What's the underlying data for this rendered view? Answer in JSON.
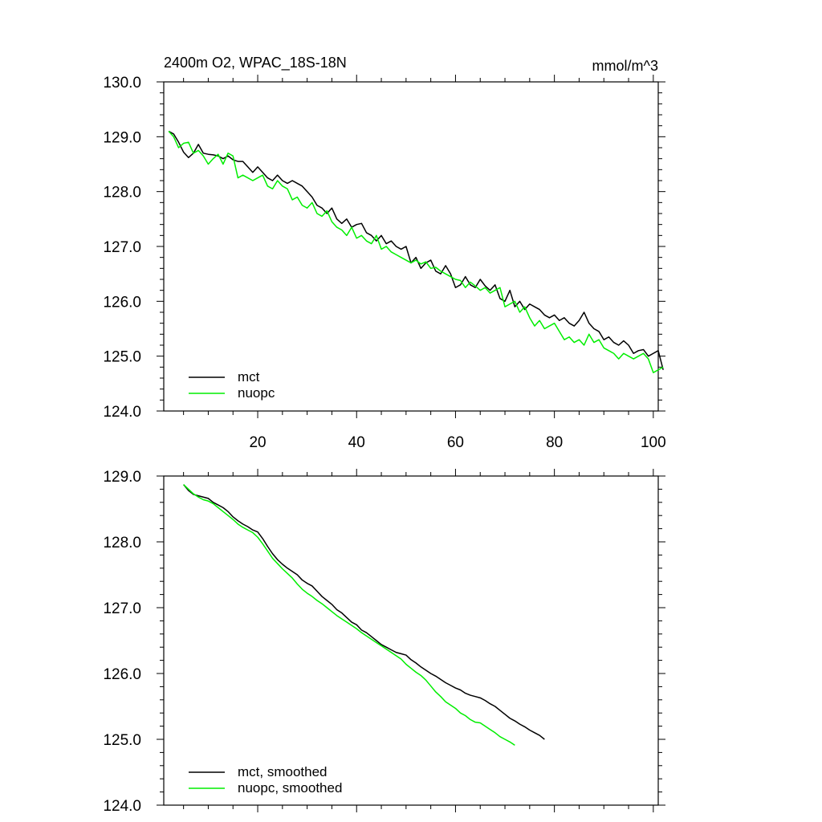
{
  "chart_data": [
    {
      "type": "line",
      "title_left": "2400m O2, WPAC_18S-18N",
      "title_right": "mmol/m^3",
      "xlabel": "",
      "ylabel": "",
      "xlim": [
        1,
        101
      ],
      "ylim": [
        124,
        130
      ],
      "x_ticks": [
        20,
        40,
        60,
        80,
        100
      ],
      "x_tick_labels": [
        "20",
        "40",
        "60",
        "80",
        "100"
      ],
      "y_ticks": [
        124,
        125,
        126,
        127,
        128,
        129,
        130
      ],
      "y_tick_labels": [
        "124.0",
        "125.0",
        "126.0",
        "127.0",
        "128.0",
        "129.0",
        "130.0"
      ],
      "grid": false,
      "legend_placement": "bottom-left",
      "series": [
        {
          "name": "mct",
          "color": "#000000",
          "x_start": 2,
          "values": [
            129.1,
            129.05,
            128.9,
            128.72,
            128.62,
            128.7,
            128.86,
            128.7,
            128.68,
            128.67,
            128.65,
            128.6,
            128.65,
            128.58,
            128.55,
            128.55,
            128.45,
            128.35,
            128.45,
            128.35,
            128.25,
            128.2,
            128.3,
            128.2,
            128.15,
            128.2,
            128.15,
            128.1,
            128.0,
            127.9,
            127.75,
            127.7,
            127.6,
            127.7,
            127.5,
            127.42,
            127.5,
            127.35,
            127.4,
            127.42,
            127.25,
            127.2,
            127.1,
            127.2,
            127.05,
            127.1,
            127.0,
            126.95,
            127.0,
            126.7,
            126.8,
            126.6,
            126.7,
            126.75,
            126.55,
            126.5,
            126.65,
            126.5,
            126.25,
            126.3,
            126.45,
            126.3,
            126.25,
            126.4,
            126.28,
            126.2,
            126.3,
            126.05,
            126.0,
            126.2,
            125.9,
            126.0,
            125.85,
            125.95,
            125.9,
            125.85,
            125.75,
            125.7,
            125.75,
            125.65,
            125.7,
            125.6,
            125.55,
            125.65,
            125.8,
            125.6,
            125.5,
            125.45,
            125.3,
            125.35,
            125.25,
            125.2,
            125.28,
            125.2,
            125.05,
            125.1,
            125.12,
            125.0,
            125.05,
            125.1,
            124.75
          ]
        },
        {
          "name": "nuopc",
          "color": "#00ee00",
          "x_start": 2,
          "values": [
            129.1,
            129.0,
            128.8,
            128.88,
            128.9,
            128.7,
            128.75,
            128.65,
            128.5,
            128.6,
            128.68,
            128.5,
            128.7,
            128.65,
            128.25,
            128.3,
            128.25,
            128.2,
            128.25,
            128.3,
            128.1,
            128.05,
            128.2,
            128.1,
            128.05,
            127.85,
            127.9,
            127.75,
            127.7,
            127.8,
            127.6,
            127.55,
            127.65,
            127.45,
            127.35,
            127.3,
            127.2,
            127.35,
            127.15,
            127.2,
            127.1,
            127.05,
            127.2,
            126.95,
            127.0,
            126.9,
            126.85,
            126.8,
            126.75,
            126.7,
            126.75,
            126.68,
            126.72,
            126.6,
            126.62,
            126.55,
            126.5,
            126.45,
            126.4,
            126.38,
            126.25,
            126.35,
            126.28,
            126.2,
            126.25,
            126.15,
            126.2,
            126.25,
            125.9,
            125.95,
            126.0,
            125.8,
            125.9,
            125.7,
            125.55,
            125.65,
            125.5,
            125.55,
            125.6,
            125.45,
            125.3,
            125.35,
            125.25,
            125.3,
            125.2,
            125.4,
            125.25,
            125.3,
            125.15,
            125.1,
            125.05,
            124.95,
            125.05,
            125.0,
            124.95,
            125.0,
            125.05,
            124.95,
            124.7,
            124.75,
            124.8
          ]
        }
      ]
    },
    {
      "type": "line",
      "xlabel": "",
      "ylabel": "",
      "xlim": [
        1,
        101
      ],
      "ylim": [
        124,
        129
      ],
      "x_ticks": [
        20,
        40,
        60,
        80,
        100
      ],
      "y_ticks": [
        124,
        125,
        126,
        127,
        128,
        129
      ],
      "y_tick_labels": [
        "124.0",
        "125.0",
        "126.0",
        "127.0",
        "128.0",
        "129.0"
      ],
      "grid": false,
      "legend_placement": "bottom-left",
      "series": [
        {
          "name": "mct, smoothed",
          "color": "#000000",
          "x_start": 5,
          "values": [
            128.87,
            128.78,
            128.72,
            128.7,
            128.68,
            128.66,
            128.6,
            128.56,
            128.52,
            128.46,
            128.38,
            128.32,
            128.27,
            128.23,
            128.18,
            128.15,
            128.05,
            127.93,
            127.82,
            127.73,
            127.66,
            127.6,
            127.55,
            127.5,
            127.42,
            127.37,
            127.33,
            127.25,
            127.17,
            127.11,
            127.05,
            126.97,
            126.92,
            126.85,
            126.78,
            126.74,
            126.66,
            126.62,
            126.56,
            126.5,
            126.44,
            126.4,
            126.36,
            126.32,
            126.3,
            126.28,
            126.21,
            126.16,
            126.1,
            126.05,
            126.0,
            125.96,
            125.91,
            125.86,
            125.82,
            125.78,
            125.75,
            125.7,
            125.67,
            125.65,
            125.63,
            125.59,
            125.54,
            125.5,
            125.44,
            125.38,
            125.32,
            125.28,
            125.23,
            125.19,
            125.14,
            125.1,
            125.06,
            125.0
          ]
        },
        {
          "name": "nuopc, smoothed",
          "color": "#00ee00",
          "x_start": 5,
          "values": [
            128.87,
            128.8,
            128.73,
            128.68,
            128.64,
            128.62,
            128.58,
            128.52,
            128.46,
            128.4,
            128.34,
            128.27,
            128.22,
            128.18,
            128.14,
            128.07,
            127.97,
            127.86,
            127.75,
            127.67,
            127.59,
            127.52,
            127.45,
            127.36,
            127.28,
            127.22,
            127.17,
            127.11,
            127.06,
            127.0,
            126.94,
            126.88,
            126.83,
            126.78,
            126.73,
            126.68,
            126.62,
            126.57,
            126.52,
            126.47,
            126.42,
            126.37,
            126.32,
            126.27,
            126.22,
            126.14,
            126.08,
            126.02,
            125.97,
            125.9,
            125.81,
            125.72,
            125.65,
            125.57,
            125.52,
            125.47,
            125.4,
            125.36,
            125.3,
            125.26,
            125.25,
            125.2,
            125.15,
            125.1,
            125.04,
            125.0,
            124.96,
            124.91
          ]
        }
      ]
    }
  ]
}
